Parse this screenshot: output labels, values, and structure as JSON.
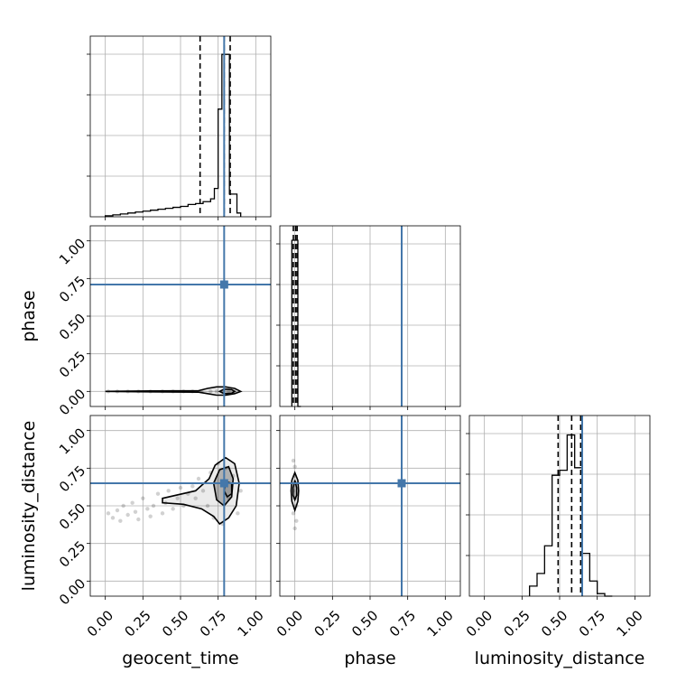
{
  "chart_data": {
    "type": "corner",
    "parameters": [
      "geocent_time",
      "phase",
      "luminosity_distance"
    ],
    "tick_labels": [
      "0.00",
      "0.25",
      "0.50",
      "0.75",
      "1.00"
    ],
    "ticks": [
      0,
      0.25,
      0.5,
      0.75,
      1.0
    ],
    "axis_range": [
      -0.1,
      1.1
    ],
    "grid": true,
    "truth_color": "#4477aa",
    "truths": {
      "geocent_time": 0.79,
      "phase": 0.71,
      "luminosity_distance": 0.65
    },
    "histograms": [
      {
        "parameter": "geocent_time",
        "bin_edges": [
          0.0,
          0.05,
          0.1,
          0.15,
          0.2,
          0.25,
          0.3,
          0.35,
          0.4,
          0.45,
          0.5,
          0.55,
          0.6,
          0.65,
          0.7,
          0.725,
          0.75,
          0.775,
          0.8,
          0.825,
          0.85,
          0.875,
          0.9
        ],
        "counts": [
          0.5,
          1,
          1.5,
          2,
          2.5,
          3,
          3.5,
          4,
          4.5,
          5,
          5.5,
          6.5,
          7,
          8,
          9.5,
          15,
          57,
          86,
          86,
          12,
          12,
          2
        ],
        "ymax": 88,
        "quantiles": [
          0.63,
          0.79,
          0.83
        ]
      },
      {
        "parameter": "phase",
        "bin_edges": [
          -0.02,
          0.0,
          0.02,
          0.04
        ],
        "counts": [
          100,
          100,
          0
        ],
        "ymax": 100,
        "quantiles": [
          -0.01,
          0.005,
          0.015
        ]
      },
      {
        "parameter": "luminosity_distance",
        "bin_edges": [
          0.3,
          0.35,
          0.4,
          0.45,
          0.5,
          0.55,
          0.6,
          0.65,
          0.7,
          0.75,
          0.8,
          0.85
        ],
        "counts": [
          4,
          9,
          20,
          48,
          50,
          64,
          51,
          17,
          6,
          1,
          0
        ],
        "ymax": 66,
        "quantiles": [
          0.49,
          0.58,
          0.64
        ]
      }
    ],
    "panels_2d": [
      {
        "x": "geocent_time",
        "y": "phase",
        "samples": [
          [
            0.02,
            0.0
          ],
          [
            0.08,
            0.0
          ],
          [
            0.15,
            0.0
          ],
          [
            0.22,
            0.0
          ],
          [
            0.3,
            0.0
          ],
          [
            0.38,
            0.0
          ],
          [
            0.45,
            0.0
          ],
          [
            0.52,
            0.0
          ],
          [
            0.58,
            0.0
          ],
          [
            0.64,
            0.0
          ],
          [
            0.7,
            0.0
          ],
          [
            0.74,
            0.0
          ],
          [
            0.78,
            0.0
          ],
          [
            0.82,
            0.0
          ],
          [
            0.86,
            0.0
          ]
        ],
        "contours": [
          [
            [
              0.0,
              0.0
            ],
            [
              0.3,
              0.003
            ],
            [
              0.62,
              0.005
            ],
            [
              0.68,
              0.02
            ],
            [
              0.74,
              0.03
            ],
            [
              0.8,
              0.03
            ],
            [
              0.86,
              0.02
            ],
            [
              0.9,
              0.0
            ],
            [
              0.86,
              -0.015
            ],
            [
              0.8,
              -0.025
            ],
            [
              0.74,
              -0.025
            ],
            [
              0.68,
              -0.015
            ],
            [
              0.62,
              -0.005
            ],
            [
              0.3,
              -0.003
            ]
          ],
          [
            [
              0.76,
              0.0
            ],
            [
              0.79,
              0.015
            ],
            [
              0.84,
              0.012
            ],
            [
              0.86,
              0.0
            ],
            [
              0.84,
              -0.012
            ],
            [
              0.79,
              -0.015
            ]
          ]
        ]
      },
      {
        "x": "geocent_time",
        "y": "luminosity_distance",
        "samples": [
          [
            0.02,
            0.45
          ],
          [
            0.05,
            0.42
          ],
          [
            0.08,
            0.47
          ],
          [
            0.1,
            0.4
          ],
          [
            0.12,
            0.5
          ],
          [
            0.15,
            0.44
          ],
          [
            0.18,
            0.52
          ],
          [
            0.2,
            0.46
          ],
          [
            0.22,
            0.41
          ],
          [
            0.25,
            0.55
          ],
          [
            0.28,
            0.48
          ],
          [
            0.3,
            0.43
          ],
          [
            0.32,
            0.5
          ],
          [
            0.35,
            0.58
          ],
          [
            0.38,
            0.45
          ],
          [
            0.4,
            0.52
          ],
          [
            0.42,
            0.6
          ],
          [
            0.45,
            0.48
          ],
          [
            0.48,
            0.55
          ],
          [
            0.5,
            0.62
          ],
          [
            0.52,
            0.5
          ],
          [
            0.55,
            0.58
          ],
          [
            0.58,
            0.63
          ],
          [
            0.6,
            0.55
          ],
          [
            0.62,
            0.68
          ],
          [
            0.65,
            0.6
          ],
          [
            0.68,
            0.5
          ],
          [
            0.7,
            0.72
          ],
          [
            0.72,
            0.42
          ],
          [
            0.75,
            0.78
          ],
          [
            0.78,
            0.38
          ],
          [
            0.8,
            0.75
          ],
          [
            0.82,
            0.55
          ],
          [
            0.85,
            0.7
          ],
          [
            0.88,
            0.45
          ],
          [
            0.9,
            0.6
          ]
        ],
        "contours": [
          [
            [
              0.38,
              0.55
            ],
            [
              0.6,
              0.6
            ],
            [
              0.69,
              0.68
            ],
            [
              0.73,
              0.77
            ],
            [
              0.8,
              0.82
            ],
            [
              0.86,
              0.78
            ],
            [
              0.89,
              0.65
            ],
            [
              0.87,
              0.5
            ],
            [
              0.82,
              0.42
            ],
            [
              0.76,
              0.38
            ],
            [
              0.72,
              0.43
            ],
            [
              0.64,
              0.48
            ],
            [
              0.52,
              0.51
            ],
            [
              0.38,
              0.52
            ]
          ],
          [
            [
              0.72,
              0.65
            ],
            [
              0.76,
              0.74
            ],
            [
              0.82,
              0.76
            ],
            [
              0.85,
              0.68
            ],
            [
              0.84,
              0.56
            ],
            [
              0.79,
              0.5
            ],
            [
              0.74,
              0.54
            ]
          ],
          [
            [
              0.79,
              0.6
            ],
            [
              0.8,
              0.66
            ],
            [
              0.84,
              0.65
            ],
            [
              0.84,
              0.58
            ],
            [
              0.81,
              0.56
            ]
          ]
        ]
      },
      {
        "x": "phase",
        "y": "luminosity_distance",
        "samples": [
          [
            0.0,
            0.35
          ],
          [
            -0.01,
            0.45
          ],
          [
            0.01,
            0.5
          ],
          [
            0.0,
            0.55
          ],
          [
            -0.01,
            0.6
          ],
          [
            0.01,
            0.65
          ],
          [
            0.0,
            0.7
          ],
          [
            0.0,
            0.76
          ],
          [
            0.01,
            0.4
          ],
          [
            -0.01,
            0.8
          ]
        ],
        "contours": [
          [
            [
              0.0,
              0.72
            ],
            [
              0.02,
              0.67
            ],
            [
              0.025,
              0.6
            ],
            [
              0.02,
              0.53
            ],
            [
              0.0,
              0.47
            ],
            [
              -0.02,
              0.53
            ],
            [
              -0.025,
              0.6
            ],
            [
              -0.02,
              0.67
            ]
          ],
          [
            [
              0.0,
              0.67
            ],
            [
              0.012,
              0.62
            ],
            [
              0.012,
              0.57
            ],
            [
              0.0,
              0.54
            ],
            [
              -0.012,
              0.57
            ],
            [
              -0.012,
              0.62
            ]
          ]
        ]
      }
    ]
  }
}
